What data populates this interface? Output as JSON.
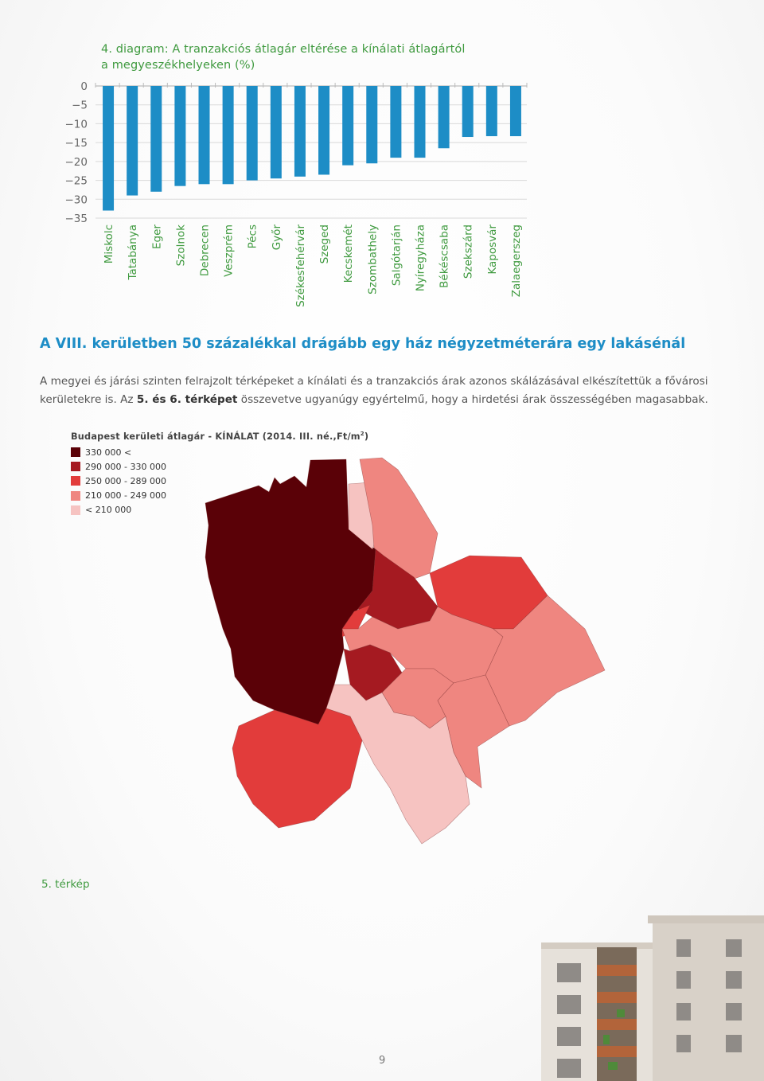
{
  "bar_chart": {
    "title_line1": "4. diagram: A tranzakciós átlagár eltérése a kínálati átlagártól",
    "title_line2": "a megyeszékhelyeken (%)"
  },
  "chart_data": {
    "type": "bar",
    "orientation": "vertical",
    "title": "4. diagram: A tranzakciós átlagár eltérése a kínálati átlagártól a megyeszékhelyeken (%)",
    "categories": [
      "Miskolc",
      "Tatabánya",
      "Eger",
      "Szolnok",
      "Debrecen",
      "Veszprém",
      "Pécs",
      "Győr",
      "Székesfehérvár",
      "Szeged",
      "Kecskemét",
      "Szombathely",
      "Salgótarján",
      "Nyíregyháza",
      "Békéscsaba",
      "Szekszárd",
      "Kaposvár",
      "Zalaegerszeg"
    ],
    "values": [
      -33,
      -29,
      -28,
      -26.5,
      -26,
      -26,
      -25,
      -24.5,
      -24,
      -23.5,
      -21,
      -20.5,
      -19,
      -19,
      -16.5,
      -13.5,
      -13.3,
      -13.3
    ],
    "y_ticks": [
      "0",
      "-5",
      "-10",
      "-15",
      "-20",
      "-25",
      "-30",
      "-35"
    ],
    "ylim": [
      -35,
      0
    ],
    "grid": true,
    "colors": {
      "bar": "#1d8dc6",
      "labels": "#3f9a3f"
    }
  },
  "headline": "A VIII. kerületben 50 százalékkal drágább egy ház négyzetméterára egy lakásénál",
  "paragraph": {
    "part1": "A megyei és járási szinten felrajzolt térképeket a kínálati és a tranzakciós árak azonos skálázásával elkészítettük a fővárosi kerületekre is. Az ",
    "bold1": "5. és 6. térképet",
    "part2": " összevetve ugyanúgy egyértelmű, hogy a hirdetési árak összességében magasabbak."
  },
  "map": {
    "title": "Budapest kerületi átlagár - KÍNÁLAT (2014. III. né.,Ft/m",
    "title_sup": "2",
    "title_close": ")",
    "legend": [
      {
        "label": "330 000 <",
        "color": "#5a0107"
      },
      {
        "label": "290 000 - 330 000",
        "color": "#a51a21"
      },
      {
        "label": "250 000 - 289 000",
        "color": "#e23c3b"
      },
      {
        "label": "210 000 - 249 000",
        "color": "#ef8680"
      },
      {
        "label": "< 210 000",
        "color": "#f6c3c1"
      }
    ],
    "caption": "5. térkép"
  },
  "page_number": "9"
}
